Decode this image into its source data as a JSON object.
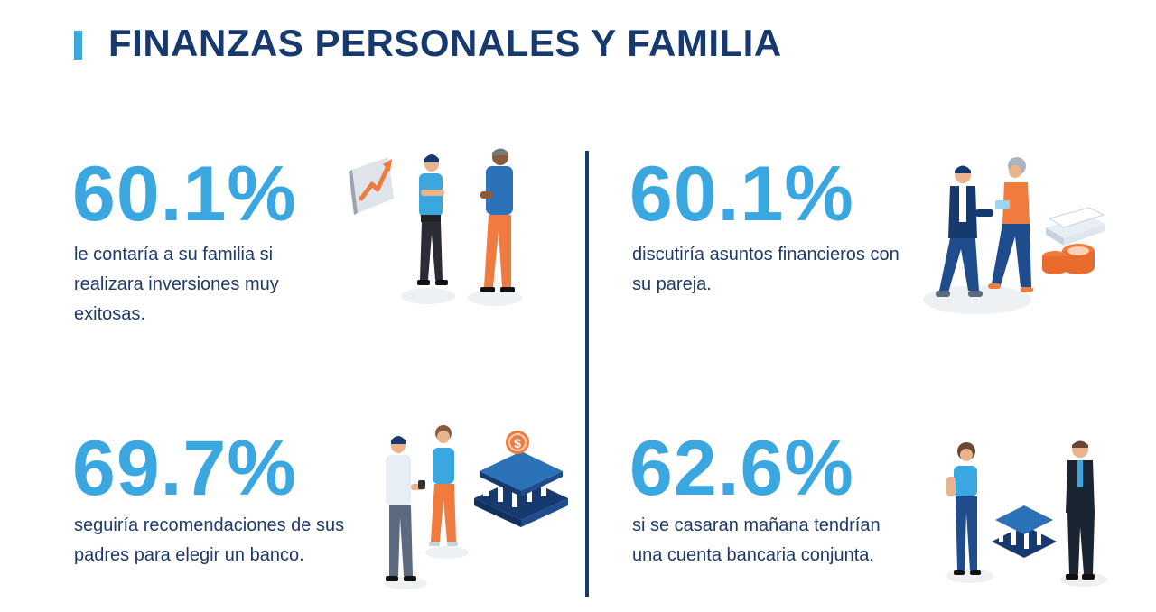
{
  "header": {
    "title": "FINANZAS PERSONALES Y FAMILIA"
  },
  "stats": [
    {
      "value": "60.1%",
      "description": "le contaría a su familia si realizara inversiones muy exitosas.",
      "illustration": "two-men-talking-growth-chart-icon"
    },
    {
      "value": "60.1%",
      "description": "discutiría asuntos financieros con su pareja.",
      "illustration": "couple-walking-money-stacks-icon"
    },
    {
      "value": "69.7%",
      "description": "seguiría recomendaciones de sus padres para elegir un banco.",
      "illustration": "couple-bank-building-icon"
    },
    {
      "value": "62.6%",
      "description": "si se casaran mañana tendrían una cuenta bancaria conjunta.",
      "illustration": "couple-bank-icon"
    }
  ],
  "colors": {
    "title": "#163a70",
    "accent": "#3aa7e0",
    "text": "#1e3a6a",
    "orange": "#f07b3f",
    "navy": "#163a70"
  }
}
